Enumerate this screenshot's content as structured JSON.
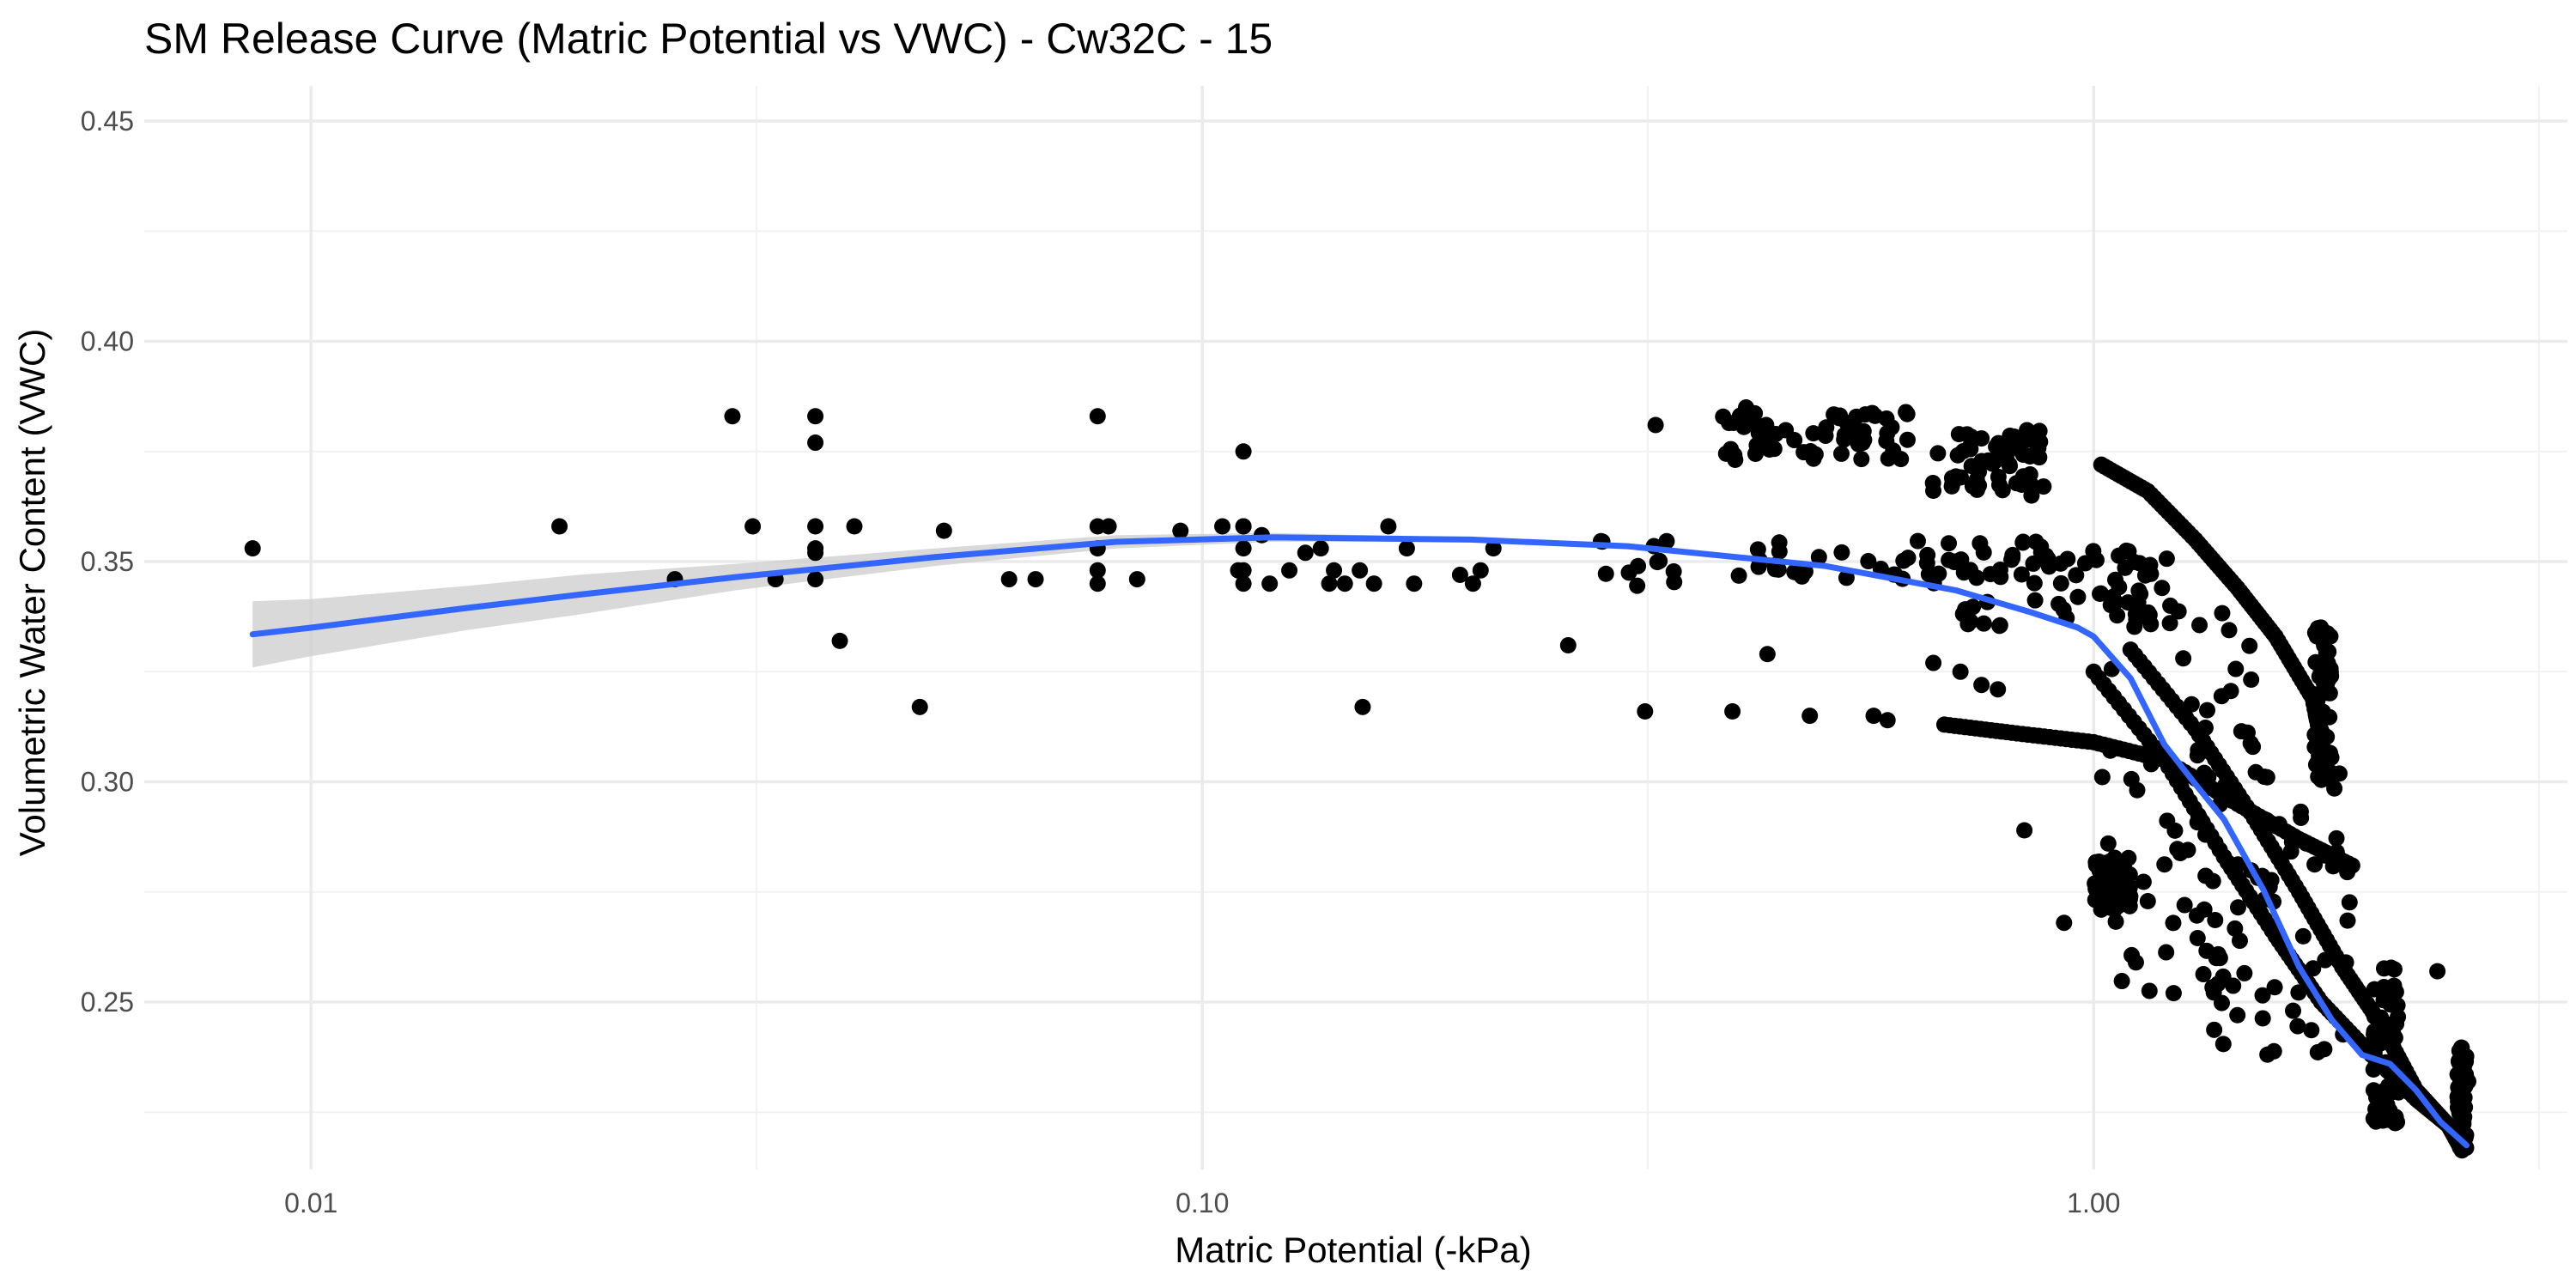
{
  "chart_data": {
    "type": "scatter",
    "title": "SM Release Curve (Matric Potential vs VWC) - Cw32C - 15",
    "xlabel": "Matric Potential (-kPa)",
    "ylabel": "Volumetric Water Content (VWC)",
    "x_scale": "log10",
    "xlim": [
      0.0065,
      3.4
    ],
    "ylim": [
      0.212,
      0.458
    ],
    "x_ticks": [
      {
        "value": 0.01,
        "label": "0.01"
      },
      {
        "value": 0.1,
        "label": "0.10"
      },
      {
        "value": 1.0,
        "label": "1.00"
      }
    ],
    "x_minor_ticks": [
      0.00316,
      0.0316,
      0.316,
      3.16
    ],
    "y_ticks": [
      {
        "value": 0.25,
        "label": "0.25"
      },
      {
        "value": 0.3,
        "label": "0.30"
      },
      {
        "value": 0.35,
        "label": "0.35"
      },
      {
        "value": 0.4,
        "label": "0.40"
      },
      {
        "value": 0.45,
        "label": "0.45"
      }
    ],
    "y_minor_ticks": [
      0.225,
      0.275,
      0.325,
      0.375,
      0.425
    ],
    "grid": true,
    "legend": "none",
    "colors": {
      "points": "#000000",
      "smooth": "#3366ff",
      "ribbon": "#cccccc"
    },
    "series": [
      {
        "role": "points",
        "x": [
          0.0086,
          0.019,
          0.0256,
          0.0297,
          0.0313,
          0.0332,
          0.0368,
          0.0368,
          0.0368,
          0.0368,
          0.0368,
          0.0368,
          0.0392,
          0.0407,
          0.0482,
          0.0513,
          0.0607,
          0.065,
          0.0763,
          0.0763,
          0.0763,
          0.0763,
          0.0763,
          0.0785,
          0.0845,
          0.0945,
          0.1053,
          0.1097,
          0.1112,
          0.1112,
          0.1112,
          0.1112,
          0.1112,
          0.1112,
          0.1166,
          0.119,
          0.1252,
          0.1305,
          0.1358,
          0.1388,
          0.1405,
          0.1445,
          0.1502,
          0.1513,
          0.1558,
          0.1617,
          0.1696,
          0.1728,
          0.1946,
          0.2012,
          0.2052,
          0.2121,
          0.2573,
          0.3138,
          0.3225,
          0.3933,
          0.4074,
          0.4305,
          0.4803,
          0.5664,
          0.5871,
          0.6609,
          0.7088,
          0.7484,
          0.7807,
          0.8247,
          0.8361,
          0.8516,
          0.9263,
          1.0198,
          1.0384,
          1.1152,
          1.3728,
          1.9187,
          2.4301,
          2.6316
        ],
        "y": [
          0.353,
          0.358,
          0.346,
          0.383,
          0.358,
          0.346,
          0.383,
          0.377,
          0.358,
          0.352,
          0.346,
          0.353,
          0.332,
          0.358,
          0.317,
          0.357,
          0.346,
          0.346,
          0.383,
          0.358,
          0.353,
          0.348,
          0.345,
          0.358,
          0.346,
          0.357,
          0.358,
          0.348,
          0.358,
          0.375,
          0.353,
          0.348,
          0.345,
          0.358,
          0.356,
          0.345,
          0.348,
          0.352,
          0.353,
          0.345,
          0.348,
          0.345,
          0.348,
          0.317,
          0.345,
          0.358,
          0.353,
          0.345,
          0.347,
          0.345,
          0.348,
          0.353,
          0.331,
          0.316,
          0.381,
          0.316,
          0.385,
          0.329,
          0.315,
          0.315,
          0.314,
          0.327,
          0.325,
          0.322,
          0.321,
          0.378,
          0.289,
          0.365,
          0.268,
          0.271,
          0.286,
          0.259,
          0.26,
          0.259,
          0.257,
          0.232
        ],
        "clusters": [
          {
            "x_start": 0.28,
            "x_end": 0.96,
            "y_min": 0.3445,
            "y_max": 0.3555
          },
          {
            "x_start": 0.38,
            "x_end": 0.62,
            "y_min": 0.373,
            "y_max": 0.384
          },
          {
            "x_start": 0.66,
            "x_end": 0.88,
            "y_min": 0.366,
            "y_max": 0.38
          },
          {
            "x_start": 0.7,
            "x_end": 1.25,
            "y_min": 0.335,
            "y_max": 0.353
          },
          {
            "x_start": 1.0,
            "x_end": 1.6,
            "y_min": 0.25,
            "y_max": 0.34
          },
          {
            "x_start": 1.3,
            "x_end": 1.94,
            "y_min": 0.238,
            "y_max": 0.302
          },
          {
            "x_start": 1.77,
            "x_end": 1.85,
            "y_min": 0.3,
            "y_max": 0.336
          },
          {
            "x_start": 2.06,
            "x_end": 2.2,
            "y_min": 0.222,
            "y_max": 0.259
          },
          {
            "x_start": 2.56,
            "x_end": 2.62,
            "y_min": 0.216,
            "y_max": 0.24
          },
          {
            "x_start": 1.0,
            "x_end": 1.1,
            "y_min": 0.271,
            "y_max": 0.283
          }
        ],
        "trails": [
          {
            "x": [
              0.68,
              0.82,
              1.0,
              1.2,
              1.45,
              1.7,
              1.95
            ],
            "y": [
              0.313,
              0.311,
              0.309,
              0.305,
              0.295,
              0.287,
              0.281
            ]
          },
          {
            "x": [
              1.02,
              1.15,
              1.3,
              1.45,
              1.6,
              1.76,
              1.83
            ],
            "y": [
              0.372,
              0.366,
              0.355,
              0.344,
              0.333,
              0.319,
              0.302
            ]
          },
          {
            "x": [
              1.0,
              1.2,
              1.4,
              1.6,
              1.8,
              2.05,
              2.3,
              2.5,
              2.58
            ],
            "y": [
              0.325,
              0.305,
              0.283,
              0.265,
              0.25,
              0.238,
              0.228,
              0.222,
              0.217
            ]
          },
          {
            "x": [
              1.1,
              1.3,
              1.5,
              1.7,
              1.9,
              2.1,
              2.3,
              2.5
            ],
            "y": [
              0.33,
              0.312,
              0.293,
              0.275,
              0.258,
              0.245,
              0.23,
              0.222
            ]
          }
        ]
      },
      {
        "role": "smooth",
        "x": [
          0.0086,
          0.01,
          0.015,
          0.02,
          0.03,
          0.05,
          0.08,
          0.12,
          0.2,
          0.3,
          0.5,
          0.7,
          0.85,
          0.96,
          1.0,
          1.1,
          1.2,
          1.3,
          1.4,
          1.55,
          1.7,
          1.85,
          2.0,
          2.15,
          2.3,
          2.45,
          2.62
        ],
        "y": [
          0.3335,
          0.335,
          0.3395,
          0.3425,
          0.3465,
          0.351,
          0.3545,
          0.3555,
          0.355,
          0.3535,
          0.349,
          0.3435,
          0.3385,
          0.335,
          0.333,
          0.3235,
          0.3085,
          0.2995,
          0.2915,
          0.2755,
          0.258,
          0.246,
          0.238,
          0.236,
          0.23,
          0.2228,
          0.2175
        ],
        "se_lower": [
          0.326,
          0.3285,
          0.3345,
          0.338,
          0.3435,
          0.349,
          0.353,
          0.3545,
          0.3545,
          0.3532,
          0.3488,
          0.3432,
          0.3382,
          0.3347,
          0.3327,
          0.3231,
          0.3081,
          0.2991,
          0.2911,
          0.2751,
          0.2576,
          0.2456,
          0.2374,
          0.2352,
          0.229,
          0.2216,
          0.2158
        ],
        "se_upper": [
          0.341,
          0.3415,
          0.3445,
          0.347,
          0.3495,
          0.353,
          0.356,
          0.3565,
          0.3555,
          0.3538,
          0.3492,
          0.3438,
          0.3388,
          0.3353,
          0.3333,
          0.3239,
          0.3089,
          0.2999,
          0.2919,
          0.2759,
          0.2584,
          0.2464,
          0.2386,
          0.2368,
          0.231,
          0.224,
          0.2192
        ]
      }
    ]
  }
}
